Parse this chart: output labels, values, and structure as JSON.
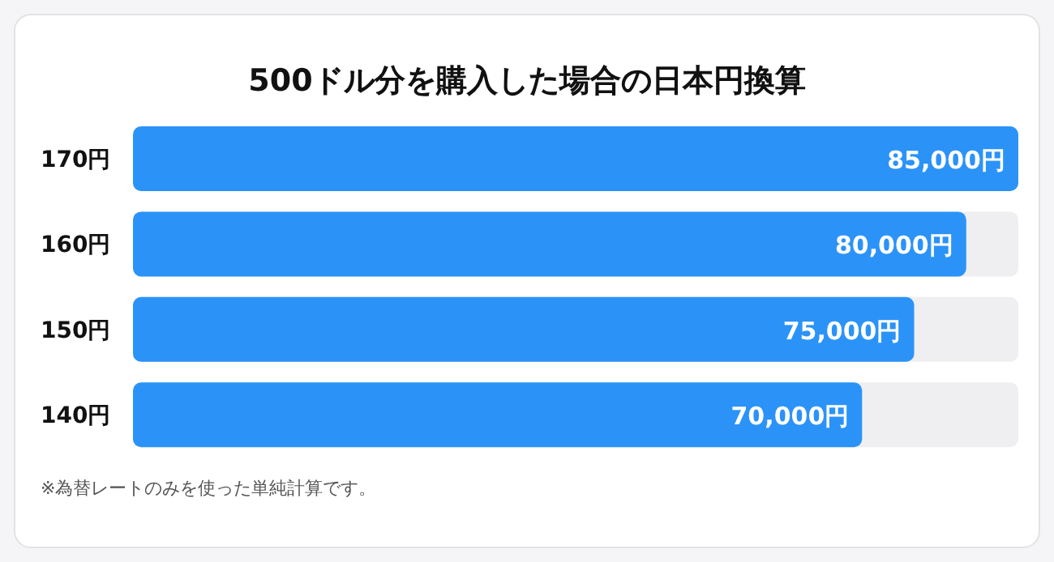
{
  "chart_data": {
    "type": "bar",
    "orientation": "horizontal",
    "title": "500ドル分を購入した場合の日本円換算",
    "categories": [
      "170円",
      "160円",
      "150円",
      "140円"
    ],
    "values": [
      85000,
      80000,
      75000,
      70000
    ],
    "value_labels": [
      "85,000円",
      "80,000円",
      "75,000円",
      "70,000円"
    ],
    "color": "#2b93f8",
    "annotations": [
      "※為替レートのみを使った単純計算です。"
    ]
  }
}
